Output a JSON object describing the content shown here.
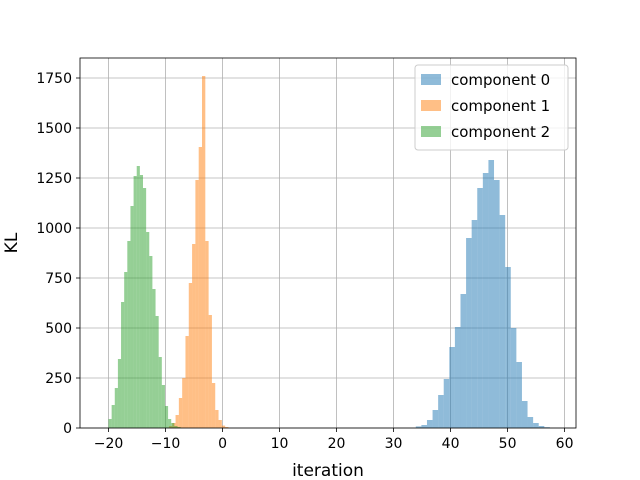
{
  "chart_data": {
    "type": "bar",
    "subtype": "histogram",
    "xlabel": "iteration",
    "ylabel": "KL",
    "xlim": [
      -25,
      62
    ],
    "ylim": [
      0,
      1850
    ],
    "xticks": [
      -20,
      -10,
      0,
      10,
      20,
      30,
      40,
      50,
      60
    ],
    "xtick_labels": [
      "−20",
      "−10",
      "0",
      "10",
      "20",
      "30",
      "40",
      "50",
      "60"
    ],
    "yticks": [
      0,
      250,
      500,
      750,
      1000,
      1250,
      1500,
      1750
    ],
    "ytick_labels": [
      "0",
      "250",
      "500",
      "750",
      "1000",
      "1250",
      "1500",
      "1750"
    ],
    "grid": true,
    "legend_position": "top-right",
    "series": [
      {
        "name": "component 0",
        "color": "#1f77b4",
        "alpha": 0.5,
        "bin_start": 33.9,
        "bin_width": 0.98,
        "counts": [
          8,
          15,
          40,
          90,
          165,
          245,
          405,
          505,
          670,
          950,
          1040,
          1200,
          1275,
          1340,
          1240,
          1065,
          805,
          500,
          330,
          135,
          55,
          25,
          10,
          4
        ]
      },
      {
        "name": "component 1",
        "color": "#ff7f0e",
        "alpha": 0.5,
        "bin_start": -9.4,
        "bin_width": 0.58,
        "counts": [
          10,
          25,
          65,
          150,
          250,
          460,
          725,
          920,
          1240,
          1405,
          1760,
          935,
          565,
          225,
          90,
          40,
          12,
          5
        ]
      },
      {
        "name": "component 2",
        "color": "#2ca02c",
        "alpha": 0.5,
        "bin_start": -20.0,
        "bin_width": 0.55,
        "counts": [
          45,
          115,
          200,
          345,
          630,
          780,
          935,
          1110,
          1260,
          1310,
          1265,
          1200,
          980,
          860,
          695,
          560,
          355,
          215,
          110,
          45,
          25,
          10,
          5
        ]
      }
    ]
  }
}
